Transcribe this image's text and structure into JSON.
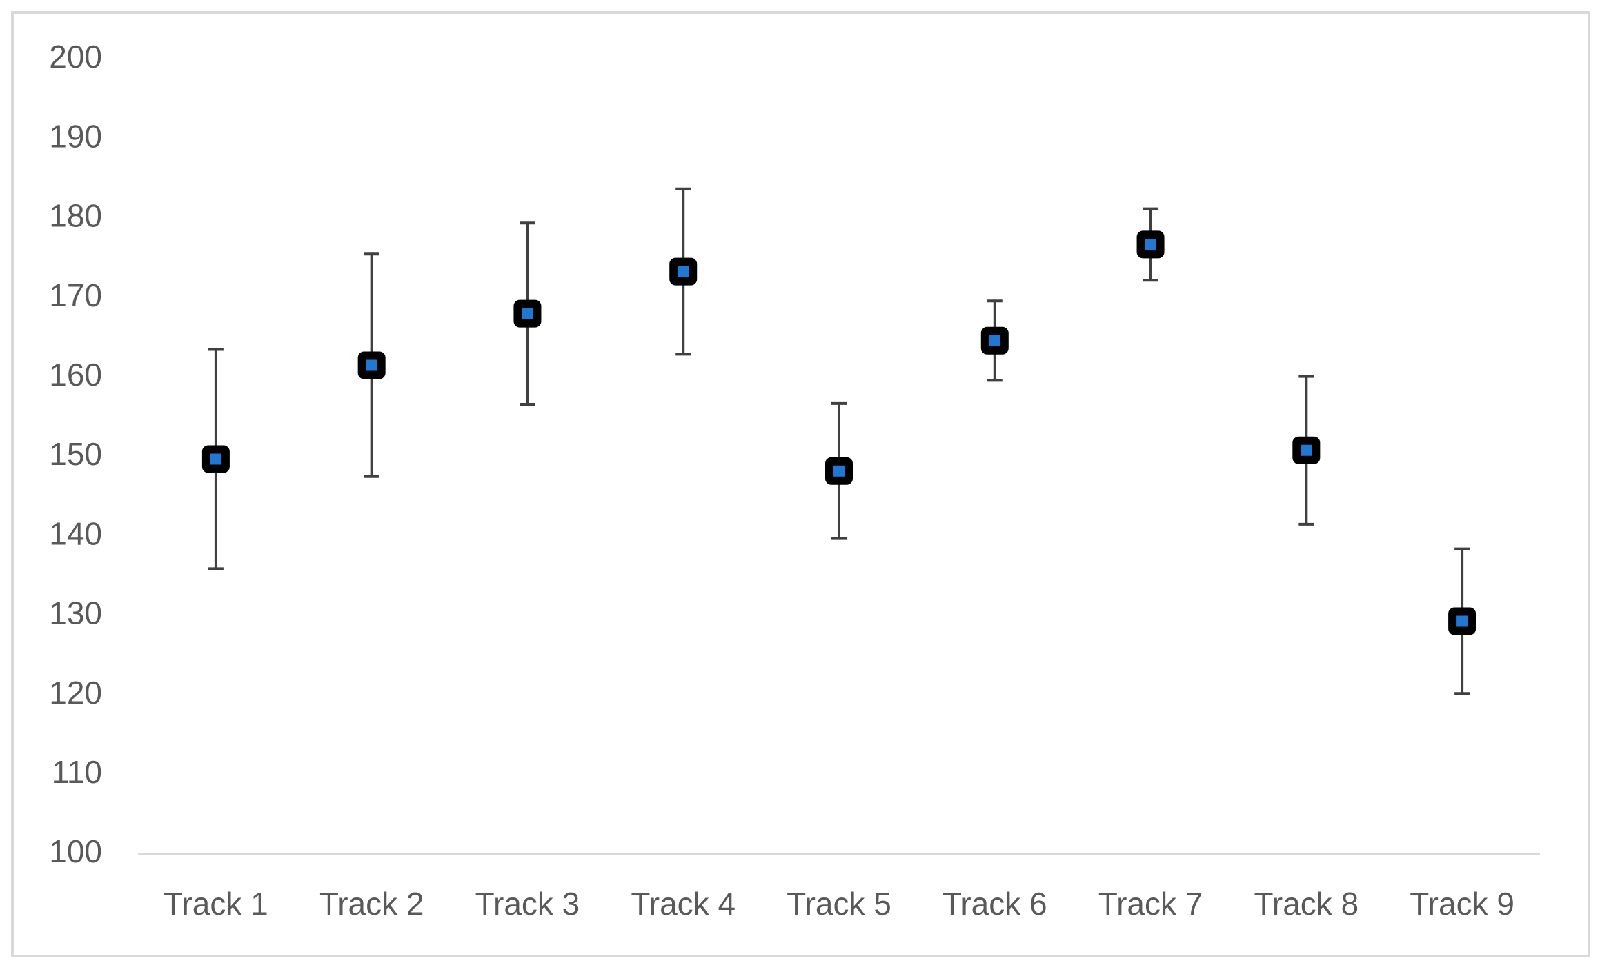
{
  "chart_data": {
    "type": "errorbar",
    "categories": [
      "Track 1",
      "Track 2",
      "Track 3",
      "Track 4",
      "Track 5",
      "Track 6",
      "Track 7",
      "Track 8",
      "Track 9"
    ],
    "values": [
      149.7,
      161.5,
      168.0,
      173.3,
      148.2,
      164.6,
      176.7,
      150.8,
      129.3
    ],
    "errors": [
      13.8,
      14.0,
      11.4,
      10.4,
      8.5,
      5.0,
      4.5,
      9.3,
      9.1
    ],
    "color": "#1f78d4",
    "marker_edge_color": "#000000",
    "errorbar_color": "#404040",
    "ylim": [
      100,
      200
    ],
    "yticks": [
      100,
      110,
      120,
      130,
      140,
      150,
      160,
      170,
      180,
      190,
      200
    ],
    "grid": false
  }
}
